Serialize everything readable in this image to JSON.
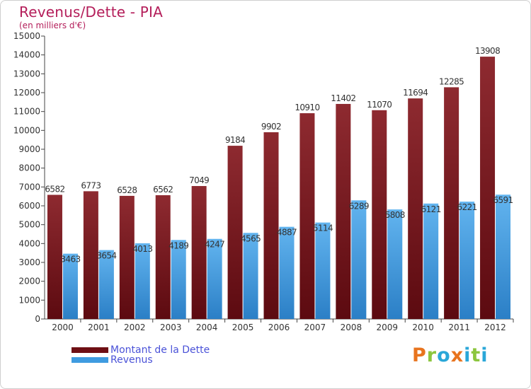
{
  "header": {
    "title": "Revenus/Dette - PIA",
    "subtitle": "(en milliers d'€)"
  },
  "legend": {
    "items": [
      {
        "label": "Montant de la Dette",
        "color": "#6e0f14"
      },
      {
        "label": "Revenus",
        "color": "#3f9be0"
      }
    ]
  },
  "logo": {
    "text": "Proxiti",
    "letters": [
      {
        "ch": "P",
        "color": "#e8741e"
      },
      {
        "ch": "r",
        "color": "#8cc63e"
      },
      {
        "ch": "o",
        "color": "#2aa7d8"
      },
      {
        "ch": "x",
        "color": "#e8741e"
      },
      {
        "ch": "i",
        "color": "#2aa7d8"
      },
      {
        "ch": "t",
        "color": "#8cc63e"
      },
      {
        "ch": "i",
        "color": "#2aa7d8"
      }
    ]
  },
  "chart_data": {
    "type": "bar",
    "title": "Revenus/Dette - PIA",
    "subtitle": "(en milliers d'€)",
    "categories": [
      "2000",
      "2001",
      "2002",
      "2003",
      "2004",
      "2005",
      "2006",
      "2007",
      "2008",
      "2009",
      "2010",
      "2011",
      "2012"
    ],
    "series": [
      {
        "name": "Montant de la Dette",
        "color": "#6e0f14",
        "values": [
          6582,
          6773,
          6528,
          6562,
          7049,
          9184,
          9902,
          10910,
          11402,
          11070,
          11694,
          12285,
          13908
        ]
      },
      {
        "name": "Revenus",
        "color": "#3f9be0",
        "values": [
          3463,
          3654,
          4013,
          4189,
          4247,
          4565,
          4887,
          5114,
          6289,
          5808,
          6121,
          6221,
          6591
        ]
      }
    ],
    "ylim": [
      0,
      15000
    ],
    "yticks": [
      0,
      1000,
      2000,
      3000,
      4000,
      5000,
      6000,
      7000,
      8000,
      9000,
      10000,
      11000,
      12000,
      13000,
      14000,
      15000
    ],
    "grid": false,
    "legend_position": "bottom-left"
  }
}
